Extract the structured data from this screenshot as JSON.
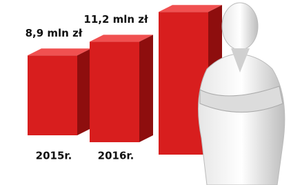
{
  "chart_data": {
    "type": "bar3d",
    "categories": [
      "2015r.",
      "2016r.",
      null
    ],
    "values": [
      8.9,
      11.2,
      15.9
    ],
    "value_labels": [
      "8,9 mln zł",
      "11,2 mln zł",
      null
    ],
    "color": "#d81e1e"
  }
}
